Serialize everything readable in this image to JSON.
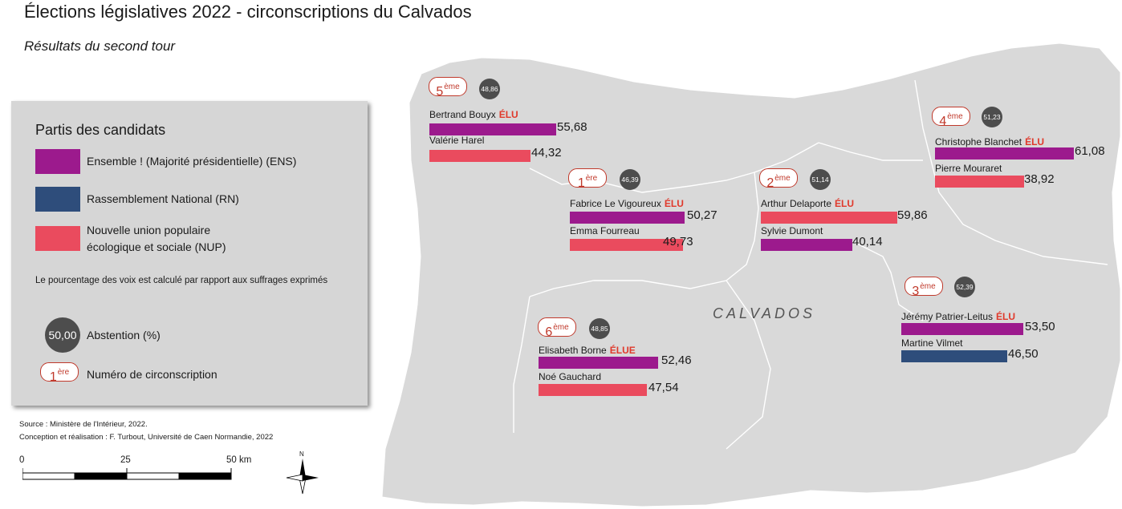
{
  "title": "Élections législatives 2022 - circonscriptions du Calvados",
  "subtitle": "Résultats du second tour",
  "map_label": "CALVADOS",
  "colors": {
    "ENS": "#9c1a8d",
    "RN": "#2e4d7b",
    "NUP": "#ea4b5e",
    "elu": "#e0392b",
    "abstention": "#4d4d4d",
    "badge": "#c0392b",
    "land": "#d9d9d9"
  },
  "legend": {
    "title": "Partis des candidats",
    "parties": [
      {
        "key": "ENS",
        "label": "Ensemble ! (Majorité présidentielle) (ENS)"
      },
      {
        "key": "RN",
        "label": "Rassemblement National (RN)"
      },
      {
        "key": "NUP",
        "label_line1": "Nouvelle union populaire",
        "label_line2": "écologique et sociale (NUP)"
      }
    ],
    "note": "Le pourcentage des voix est calculé par rapport aux suffrages exprimés",
    "abstention_example": "50,00",
    "abstention_label": "Abstention (%)",
    "badge_example_num": "1",
    "badge_example_suffix": "ère",
    "badge_label": "Numéro de circonscription"
  },
  "source_line1": "Source : Ministère de l'Intérieur, 2022.",
  "source_line2": "Conception et réalisation : F. Turbout, Université de Caen Normandie, 2022",
  "scale": {
    "labels": [
      "0",
      "25",
      "50 km"
    ]
  },
  "north_label": "N",
  "circonscriptions": [
    {
      "num": "5",
      "suffix": "ème",
      "abstention": "48,86",
      "candidates": [
        {
          "name": "Bertrand Bouyx",
          "elu": "ÉLU",
          "party": "ENS",
          "pct": 55.68,
          "pct_label": "55,68"
        },
        {
          "name": "Valérie Harel",
          "elu": "",
          "party": "NUP",
          "pct": 44.32,
          "pct_label": "44,32"
        }
      ]
    },
    {
      "num": "1",
      "suffix": "ère",
      "abstention": "46,39",
      "candidates": [
        {
          "name": "Fabrice Le Vigoureux",
          "elu": "ÉLU",
          "party": "ENS",
          "pct": 50.27,
          "pct_label": "50,27"
        },
        {
          "name": "Emma Fourreau",
          "elu": "",
          "party": "NUP",
          "pct": 49.73,
          "pct_label": "49,73"
        }
      ]
    },
    {
      "num": "2",
      "suffix": "ème",
      "abstention": "51,14",
      "candidates": [
        {
          "name": "Arthur Delaporte",
          "elu": "ÉLU",
          "party": "NUP",
          "pct": 59.86,
          "pct_label": "59,86"
        },
        {
          "name": "Sylvie Dumont",
          "elu": "",
          "party": "ENS",
          "pct": 40.14,
          "pct_label": "40,14"
        }
      ]
    },
    {
      "num": "4",
      "suffix": "ème",
      "abstention": "51,23",
      "candidates": [
        {
          "name": "Christophe Blanchet",
          "elu": "ÉLU",
          "party": "ENS",
          "pct": 61.08,
          "pct_label": "61,08"
        },
        {
          "name": "Pierre Mouraret",
          "elu": "",
          "party": "NUP",
          "pct": 38.92,
          "pct_label": "38,92"
        }
      ]
    },
    {
      "num": "3",
      "suffix": "ème",
      "abstention": "52,39",
      "candidates": [
        {
          "name": "Jérémy Patrier-Leitus",
          "elu": "ÉLU",
          "party": "ENS",
          "pct": 53.5,
          "pct_label": "53,50"
        },
        {
          "name": "Martine Vilmet",
          "elu": "",
          "party": "RN",
          "pct": 46.5,
          "pct_label": "46,50"
        }
      ]
    },
    {
      "num": "6",
      "suffix": "ème",
      "abstention": "48,85",
      "candidates": [
        {
          "name": "Elisabeth Borne",
          "elu": "ÉLUE",
          "party": "ENS",
          "pct": 52.46,
          "pct_label": "52,46"
        },
        {
          "name": "Noé Gauchard",
          "elu": "",
          "party": "NUP",
          "pct": 47.54,
          "pct_label": "47,54"
        }
      ]
    }
  ]
}
